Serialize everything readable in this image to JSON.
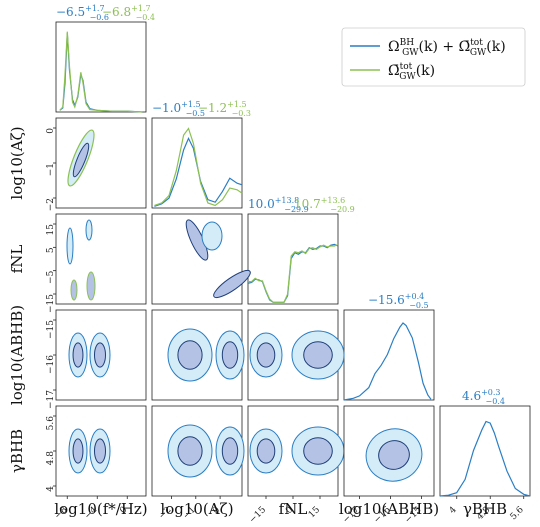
{
  "colors": {
    "blue": "#2b7ec4",
    "green": "#8cc152",
    "fill_light": "#d3ecf8",
    "fill_dark": "#b4c2e6",
    "contour_dark": "#1f3f78",
    "axis": "#222222"
  },
  "legend": {
    "entries": [
      {
        "label": "Ω_GW^BH(k) + Ω̄_GW^tot(k)",
        "color": "#2b7ec4"
      },
      {
        "label": "Ω̄_GW^tot(k)",
        "color": "#8cc152"
      }
    ]
  },
  "chart_data": {
    "type": "corner",
    "parameters": [
      {
        "name": "fstar",
        "label": "log10(f*/Hz)",
        "ticks": [
          -8,
          -4,
          0
        ],
        "range": [
          -9.5,
          2.5
        ]
      },
      {
        "name": "Azeta",
        "label": "log10(Aζ)",
        "ticks": [
          -2,
          -1,
          0
        ],
        "range": [
          -2.8,
          0.9
        ]
      },
      {
        "name": "fNL",
        "label": "fNL",
        "ticks": [
          -15,
          0,
          15
        ],
        "range": [
          -25,
          25
        ]
      },
      {
        "name": "ABHB",
        "label": "log10(ABHB)",
        "ticks": [
          -17,
          -16,
          -15
        ],
        "range": [
          -17.5,
          -14.6
        ]
      },
      {
        "name": "gammaBHB",
        "label": "γBHB",
        "ticks": [
          4.0,
          4.8,
          5.6
        ],
        "range": [
          3.6,
          5.75
        ]
      }
    ],
    "y_ticks": {
      "Azeta": [
        0,
        -1,
        -2
      ],
      "fNL": [
        15,
        5,
        -5,
        -15
      ],
      "ABHB": [
        -15,
        -16,
        -17
      ],
      "gammaBHB": [
        5.6,
        4.8,
        4.0
      ]
    },
    "titles": [
      {
        "param": "fstar",
        "series": [
          {
            "name": "blue",
            "median": "−6.5",
            "plus": "+1.7",
            "minus": "−0.6"
          },
          {
            "name": "green",
            "median": "−6.8",
            "plus": "+1.7",
            "minus": "−0.4"
          }
        ]
      },
      {
        "param": "Azeta",
        "series": [
          {
            "name": "blue",
            "median": "−1.0",
            "plus": "+1.5",
            "minus": "−0.5"
          },
          {
            "name": "green",
            "median": "−1.2",
            "plus": "+1.5",
            "minus": "−0.3"
          }
        ]
      },
      {
        "param": "fNL",
        "series": [
          {
            "name": "blue",
            "median": "10.0",
            "plus": "+13.8",
            "minus": "−29.9"
          },
          {
            "name": "green",
            "median": "10.7",
            "plus": "+13.6",
            "minus": "−20.9"
          }
        ]
      },
      {
        "param": "ABHB",
        "series": [
          {
            "name": "blue",
            "median": "−15.6",
            "plus": "+0.4",
            "minus": "−0.5"
          }
        ]
      },
      {
        "param": "gammaBHB",
        "series": [
          {
            "name": "blue",
            "median": "4.6",
            "plus": "+0.3",
            "minus": "−0.4"
          }
        ]
      }
    ],
    "marginals": {
      "fstar": {
        "blue": [
          [
            -9.0,
            0.02
          ],
          [
            -8.6,
            0.05
          ],
          [
            -8.3,
            0.35
          ],
          [
            -8.0,
            0.95
          ],
          [
            -7.7,
            0.5
          ],
          [
            -7.3,
            0.15
          ],
          [
            -7.0,
            0.08
          ],
          [
            -6.6,
            0.18
          ],
          [
            -6.2,
            0.45
          ],
          [
            -5.9,
            0.38
          ],
          [
            -5.5,
            0.12
          ],
          [
            -5.0,
            0.04
          ],
          [
            -4.0,
            0.02
          ],
          [
            -2.0,
            0.01
          ],
          [
            0.0,
            0.01
          ],
          [
            2.0,
            0.0
          ]
        ],
        "green": [
          [
            -9.0,
            0.02
          ],
          [
            -8.6,
            0.06
          ],
          [
            -8.3,
            0.45
          ],
          [
            -8.0,
            0.97
          ],
          [
            -7.7,
            0.55
          ],
          [
            -7.3,
            0.12
          ],
          [
            -7.0,
            0.06
          ],
          [
            -6.6,
            0.2
          ],
          [
            -6.2,
            0.48
          ],
          [
            -5.9,
            0.35
          ],
          [
            -5.5,
            0.1
          ],
          [
            -5.0,
            0.03
          ],
          [
            -4.0,
            0.02
          ],
          [
            -2.0,
            0.01
          ],
          [
            0.0,
            0.01
          ],
          [
            2.0,
            0.0
          ]
        ]
      },
      "Azeta": {
        "blue": [
          [
            -2.7,
            0.02
          ],
          [
            -2.4,
            0.05
          ],
          [
            -2.1,
            0.12
          ],
          [
            -1.8,
            0.35
          ],
          [
            -1.5,
            0.7
          ],
          [
            -1.3,
            0.84
          ],
          [
            -1.1,
            0.72
          ],
          [
            -0.8,
            0.32
          ],
          [
            -0.5,
            0.1
          ],
          [
            -0.2,
            0.07
          ],
          [
            0.1,
            0.2
          ],
          [
            0.4,
            0.36
          ],
          [
            0.7,
            0.3
          ],
          [
            0.9,
            0.28
          ]
        ],
        "green": [
          [
            -2.7,
            0.03
          ],
          [
            -2.4,
            0.06
          ],
          [
            -2.1,
            0.15
          ],
          [
            -1.8,
            0.45
          ],
          [
            -1.5,
            0.88
          ],
          [
            -1.3,
            0.96
          ],
          [
            -1.1,
            0.78
          ],
          [
            -0.8,
            0.3
          ],
          [
            -0.5,
            0.06
          ],
          [
            -0.2,
            0.03
          ],
          [
            0.1,
            0.1
          ],
          [
            0.4,
            0.24
          ],
          [
            0.7,
            0.22
          ],
          [
            0.9,
            0.18
          ]
        ]
      },
      "fNL": {
        "blue": [
          [
            -25,
            0.25
          ],
          [
            -23,
            0.26
          ],
          [
            -21,
            0.3
          ],
          [
            -19,
            0.29
          ],
          [
            -17,
            0.27
          ],
          [
            -15,
            0.15
          ],
          [
            -13,
            0.05
          ],
          [
            -11,
            0.02
          ],
          [
            -9,
            0.02
          ],
          [
            -7,
            0.02
          ],
          [
            -5,
            0.02
          ],
          [
            -3,
            0.1
          ],
          [
            -1,
            0.55
          ],
          [
            1,
            0.62
          ],
          [
            3,
            0.6
          ],
          [
            5,
            0.63
          ],
          [
            7,
            0.62
          ],
          [
            9,
            0.68
          ],
          [
            11,
            0.66
          ],
          [
            13,
            0.67
          ],
          [
            15,
            0.7
          ],
          [
            17,
            0.7
          ],
          [
            19,
            0.68
          ],
          [
            21,
            0.71
          ],
          [
            23,
            0.72
          ],
          [
            25,
            0.7
          ]
        ],
        "green": [
          [
            -25,
            0.27
          ],
          [
            -23,
            0.27
          ],
          [
            -21,
            0.31
          ],
          [
            -19,
            0.28
          ],
          [
            -17,
            0.28
          ],
          [
            -15,
            0.16
          ],
          [
            -13,
            0.06
          ],
          [
            -11,
            0.02
          ],
          [
            -9,
            0.02
          ],
          [
            -7,
            0.02
          ],
          [
            -5,
            0.02
          ],
          [
            -3,
            0.12
          ],
          [
            -1,
            0.58
          ],
          [
            1,
            0.63
          ],
          [
            3,
            0.62
          ],
          [
            5,
            0.64
          ],
          [
            7,
            0.61
          ],
          [
            9,
            0.67
          ],
          [
            11,
            0.68
          ],
          [
            13,
            0.66
          ],
          [
            15,
            0.69
          ],
          [
            17,
            0.71
          ],
          [
            19,
            0.69
          ],
          [
            21,
            0.7
          ],
          [
            23,
            0.7
          ],
          [
            25,
            0.72
          ]
        ]
      },
      "ABHB": {
        "blue": [
          [
            -17.5,
            0.0
          ],
          [
            -17.2,
            0.02
          ],
          [
            -17.0,
            0.05
          ],
          [
            -16.7,
            0.15
          ],
          [
            -16.5,
            0.32
          ],
          [
            -16.3,
            0.42
          ],
          [
            -16.1,
            0.55
          ],
          [
            -15.9,
            0.74
          ],
          [
            -15.7,
            0.88
          ],
          [
            -15.6,
            0.93
          ],
          [
            -15.5,
            0.9
          ],
          [
            -15.3,
            0.75
          ],
          [
            -15.1,
            0.45
          ],
          [
            -14.95,
            0.2
          ],
          [
            -14.8,
            0.06
          ],
          [
            -14.7,
            0.01
          ]
        ]
      },
      "gammaBHB": {
        "blue": [
          [
            3.6,
            0.0
          ],
          [
            3.8,
            0.01
          ],
          [
            4.0,
            0.04
          ],
          [
            4.2,
            0.2
          ],
          [
            4.4,
            0.55
          ],
          [
            4.6,
            0.8
          ],
          [
            4.7,
            0.9
          ],
          [
            4.8,
            0.88
          ],
          [
            4.9,
            0.76
          ],
          [
            5.0,
            0.6
          ],
          [
            5.2,
            0.3
          ],
          [
            5.4,
            0.09
          ],
          [
            5.6,
            0.02
          ],
          [
            5.75,
            0.0
          ]
        ]
      }
    }
  }
}
